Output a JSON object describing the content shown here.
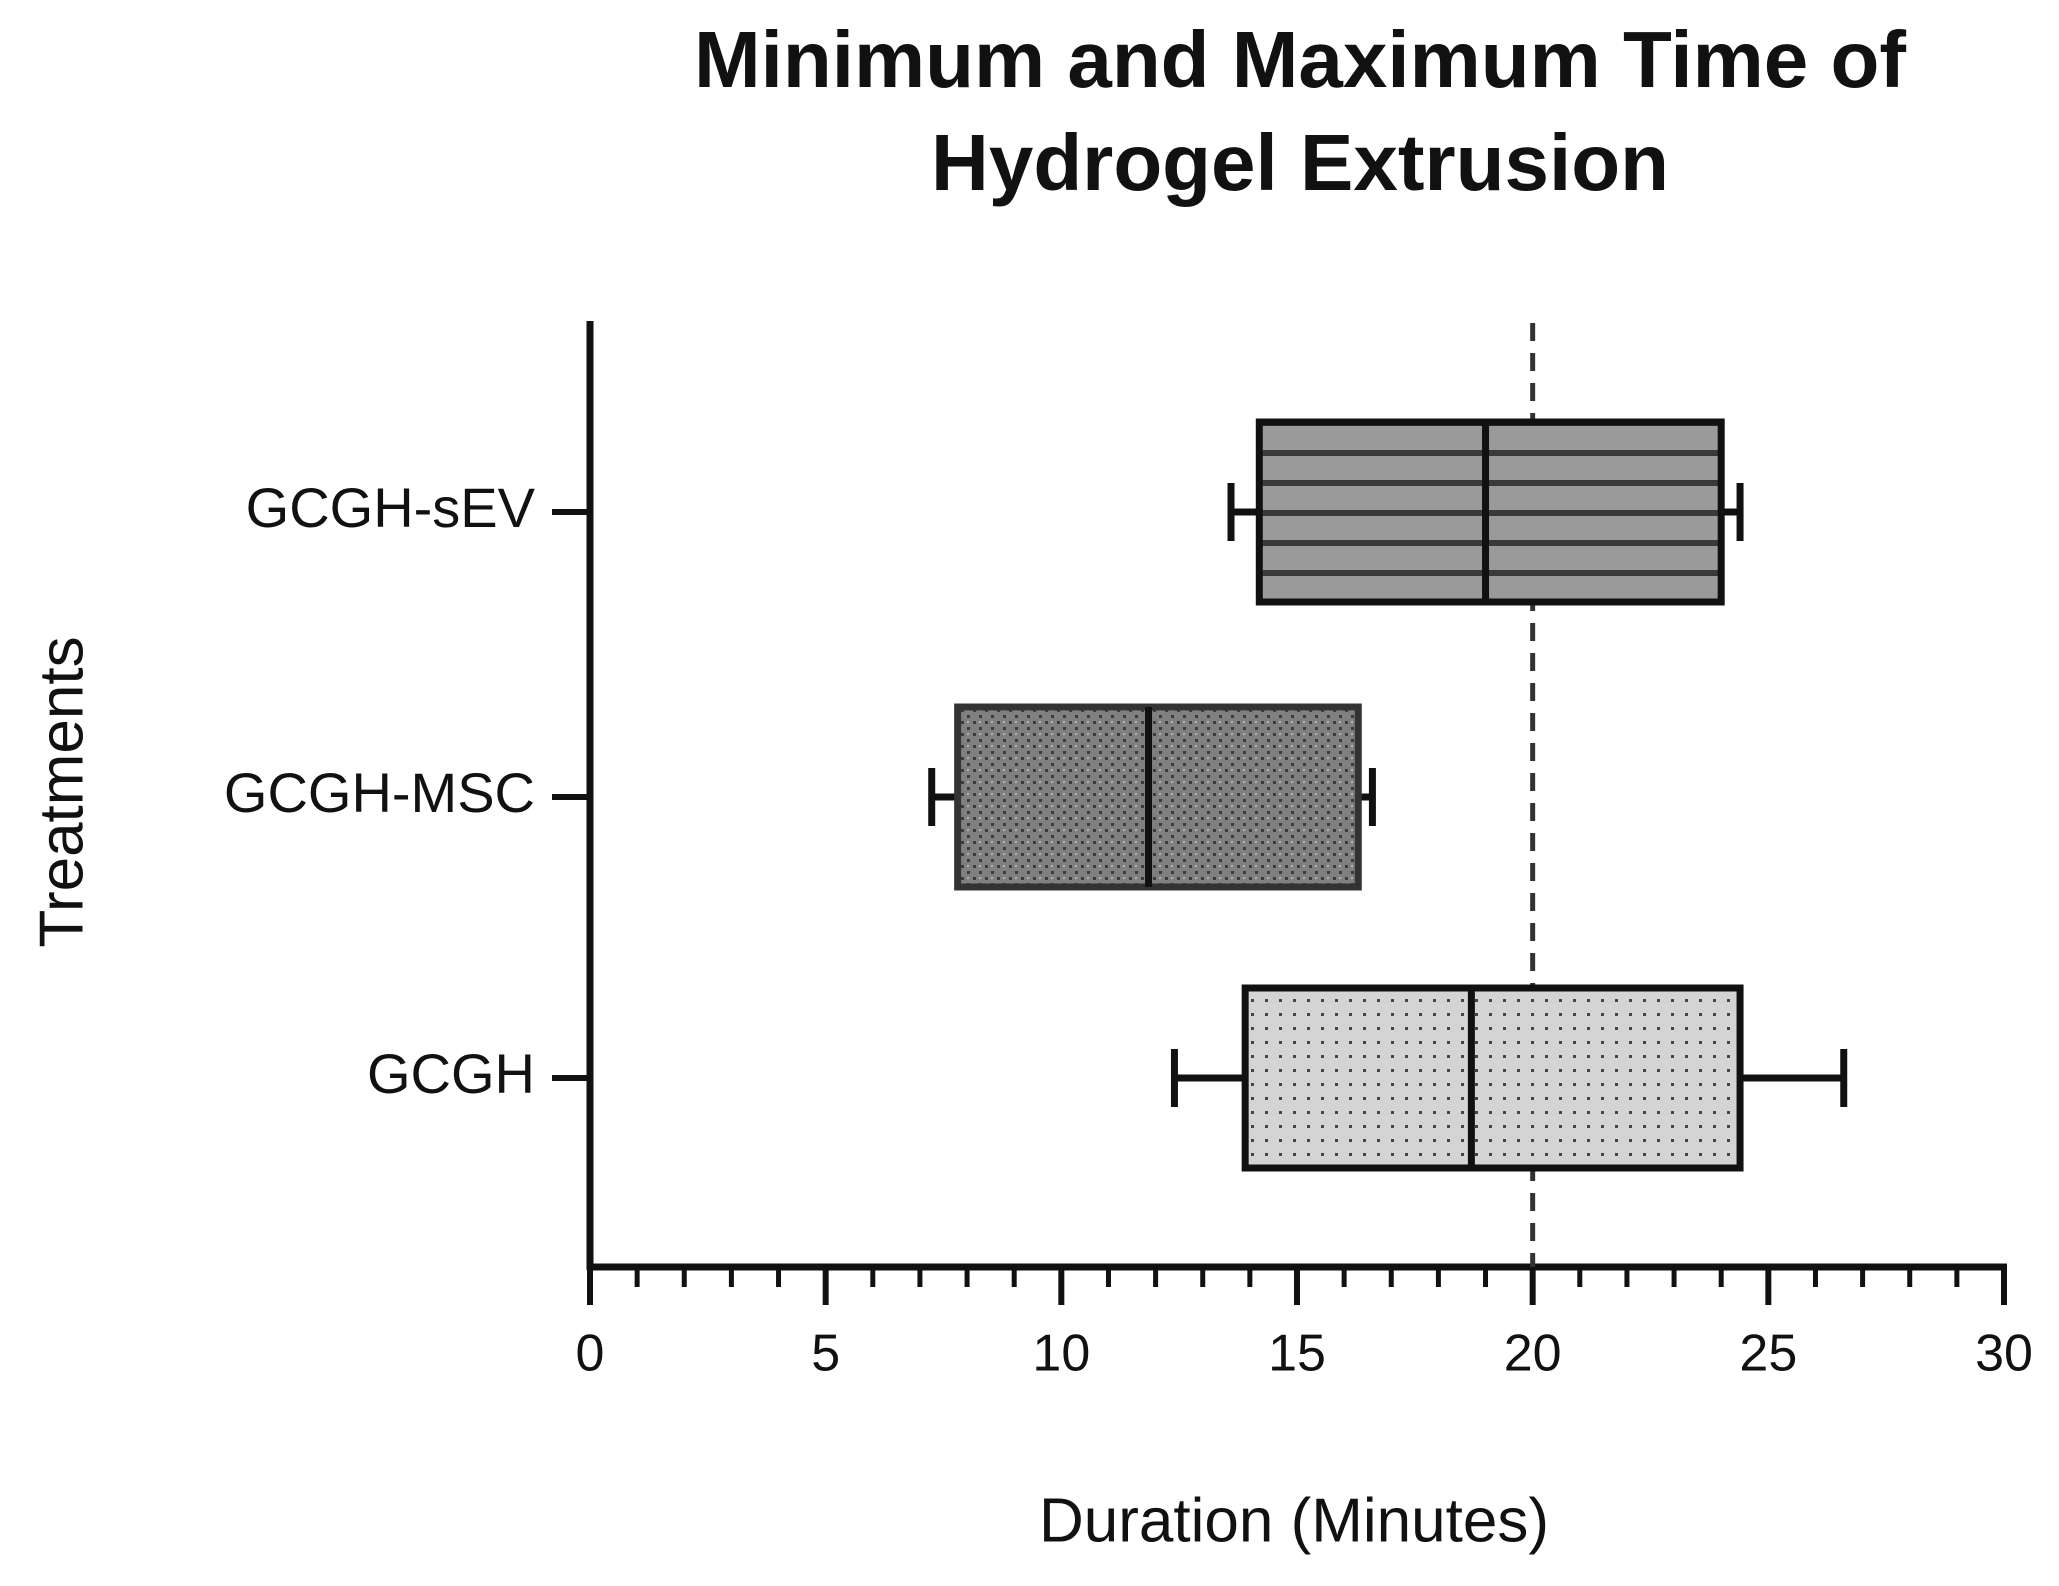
{
  "chart_data": {
    "type": "boxplot",
    "orientation": "horizontal",
    "title": [
      "Minimum and Maximum Time of",
      "Hydrogel Extrusion"
    ],
    "x_label": "Duration (Minutes)",
    "y_label": "Treatments",
    "categories": [
      "GCGH-sEV",
      "GCGH-MSC",
      "GCGH"
    ],
    "boxes": [
      {
        "min": 13.6,
        "q1": 14.2,
        "median": 19.0,
        "q3": 24.0,
        "max": 24.4,
        "color": "#9a9a9a",
        "pattern": "stripes"
      },
      {
        "min": 7.25,
        "q1": 7.8,
        "median": 11.85,
        "q3": 16.3,
        "max": 16.6,
        "color": "#808080",
        "pattern": "speckle"
      },
      {
        "min": 12.4,
        "q1": 13.9,
        "median": 18.7,
        "q3": 24.4,
        "max": 26.6,
        "color": "#d4d4d4",
        "pattern": "dots"
      }
    ],
    "xlim": [
      0,
      30
    ],
    "xticks": [
      0,
      5,
      10,
      15,
      20,
      25,
      30
    ],
    "xminorticks": [
      1,
      2,
      3,
      4,
      6,
      7,
      8,
      9,
      11,
      12,
      13,
      14,
      16,
      17,
      18,
      19,
      21,
      22,
      23,
      24,
      26,
      27,
      28,
      29
    ],
    "reference_line": {
      "value": 20,
      "style": "dashed"
    }
  }
}
